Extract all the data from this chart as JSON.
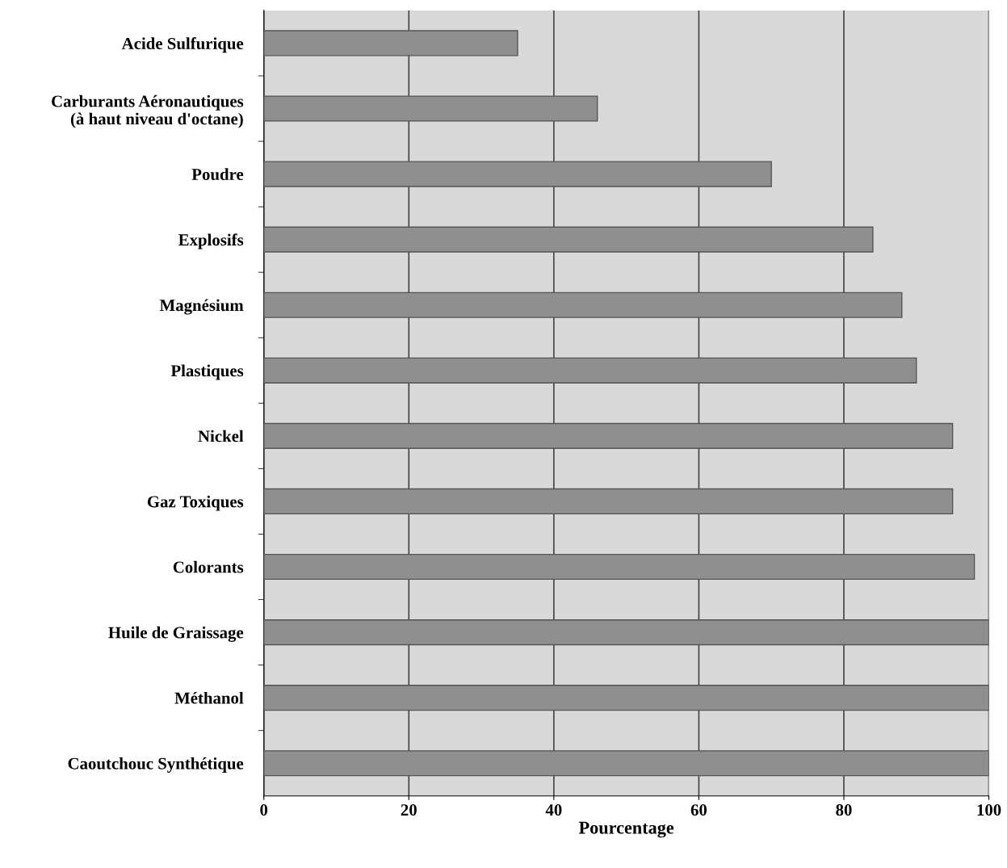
{
  "chart_data": {
    "type": "bar",
    "orientation": "horizontal",
    "xlabel": "Pourcentage",
    "categories": [
      "Acide Sulfurique",
      "Carburants Aéronautiques\n(à haut niveau d'octane)",
      "Poudre",
      "Explosifs",
      "Magnésium",
      "Plastiques",
      "Nickel",
      "Gaz Toxiques",
      "Colorants",
      "Huile de Graissage",
      "Méthanol",
      "Caoutchouc Synthétique"
    ],
    "values": [
      35,
      46,
      70,
      84,
      88,
      90,
      95,
      95,
      98,
      100,
      100,
      100
    ],
    "color": "#8f8f8f",
    "xlim": [
      0,
      100
    ],
    "xticks": [
      0,
      20,
      40,
      60,
      80,
      100
    ],
    "grid": "x",
    "legend": false
  }
}
